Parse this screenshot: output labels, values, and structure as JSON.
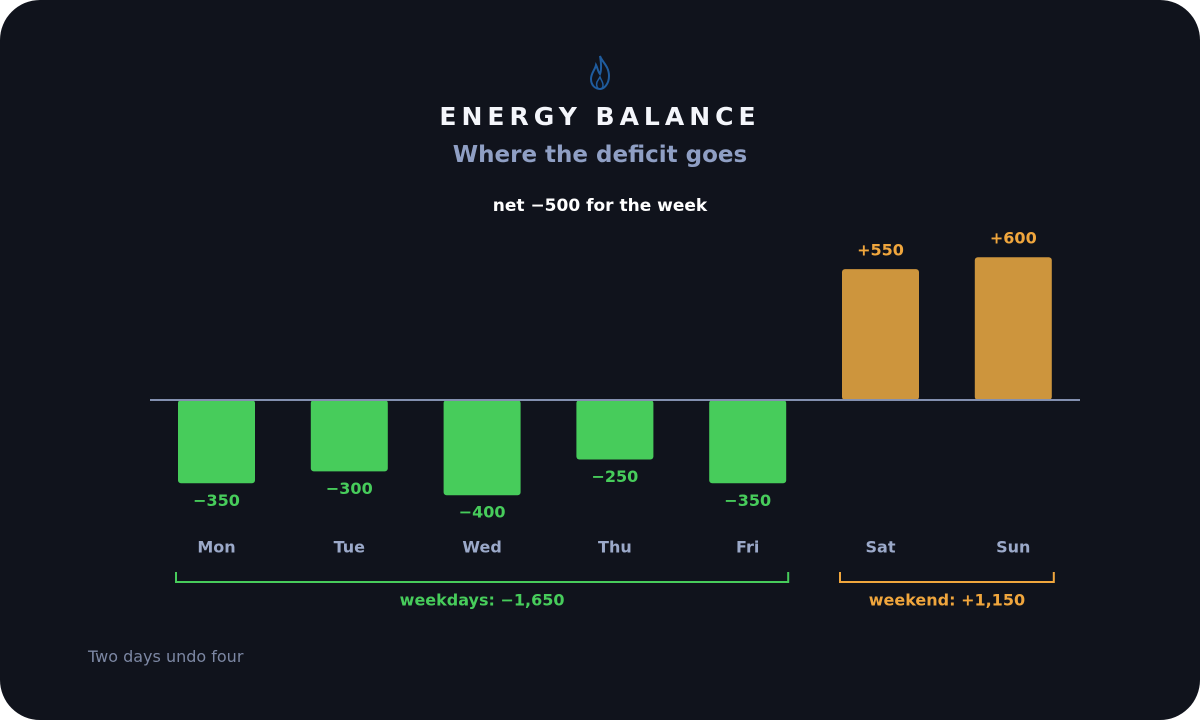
{
  "title": "ENERGY BALANCE",
  "subtitle": "Where the deficit goes",
  "net_label": "net −500 for the week",
  "footnote": "Two days undo four",
  "icon": "flame-icon",
  "colors": {
    "background": "#10131c",
    "deficit": "#47cc5b",
    "surplus": "#cd953d",
    "surplus_text": "#f0a63d",
    "baseline": "#8390b0",
    "day_label": "#9ba9c9"
  },
  "chart_data": {
    "type": "bar",
    "title": "ENERGY BALANCE",
    "subtitle": "Where the deficit goes",
    "categories": [
      "Mon",
      "Tue",
      "Wed",
      "Thu",
      "Fri",
      "Sat",
      "Sun"
    ],
    "values": [
      -350,
      -300,
      -400,
      -250,
      -350,
      550,
      600
    ],
    "value_labels": [
      "−350",
      "−300",
      "−400",
      "−250",
      "−350",
      "+550",
      "+600"
    ],
    "xlabel": "",
    "ylabel": "",
    "grid": false,
    "annotations": {
      "net": "net −500 for the week",
      "groups": [
        {
          "label": "weekdays: −1,650",
          "from": "Mon",
          "to": "Fri",
          "color": "#47cc5b"
        },
        {
          "label": "weekend: +1,150",
          "from": "Sat",
          "to": "Sun",
          "color": "#f0a63d"
        }
      ]
    }
  }
}
